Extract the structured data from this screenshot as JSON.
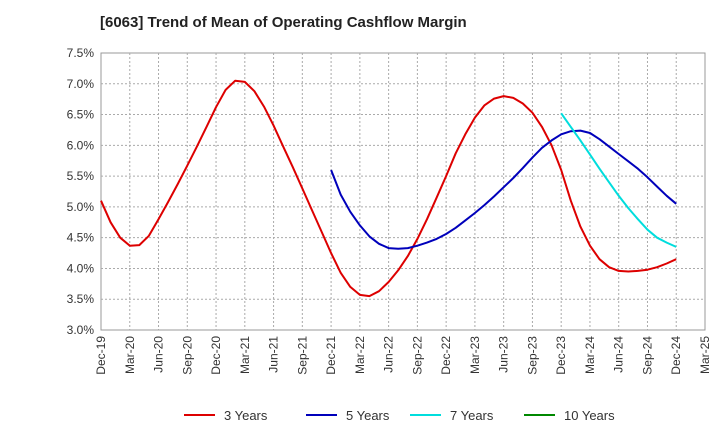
{
  "chart_data": {
    "type": "line",
    "title": "[6063]  Trend of Mean of Operating Cashflow Margin",
    "xlabel": "",
    "ylabel": "",
    "ylim": [
      3.0,
      7.5
    ],
    "grid": true,
    "legend_position": "bottom",
    "x_tick_labels": [
      "Dec-19",
      "Mar-20",
      "Jun-20",
      "Sep-20",
      "Dec-20",
      "Mar-21",
      "Jun-21",
      "Sep-21",
      "Dec-21",
      "Mar-22",
      "Jun-22",
      "Sep-22",
      "Dec-22",
      "Mar-23",
      "Jun-23",
      "Sep-23",
      "Dec-23",
      "Mar-24",
      "Jun-24",
      "Sep-24",
      "Dec-24",
      "Mar-25"
    ],
    "y_tick_labels": [
      "3.0%",
      "3.5%",
      "4.0%",
      "4.5%",
      "5.0%",
      "5.5%",
      "6.0%",
      "6.5%",
      "7.0%",
      "7.5%"
    ],
    "y_ticks": [
      3.0,
      3.5,
      4.0,
      4.5,
      5.0,
      5.5,
      6.0,
      6.5,
      7.0,
      7.5
    ],
    "series": [
      {
        "name": "3 Years",
        "color": "#dd0000",
        "x": [
          "Dec-19",
          "Jan-20",
          "Feb-20",
          "Mar-20",
          "Apr-20",
          "May-20",
          "Jun-20",
          "Jul-20",
          "Aug-20",
          "Sep-20",
          "Oct-20",
          "Nov-20",
          "Dec-20",
          "Jan-21",
          "Feb-21",
          "Mar-21",
          "Apr-21",
          "May-21",
          "Jun-21",
          "Jul-21",
          "Aug-21",
          "Sep-21",
          "Oct-21",
          "Nov-21",
          "Dec-21",
          "Jan-22",
          "Feb-22",
          "Mar-22",
          "Apr-22",
          "May-22",
          "Jun-22",
          "Jul-22",
          "Aug-22",
          "Sep-22",
          "Oct-22",
          "Nov-22",
          "Dec-22",
          "Jan-23",
          "Feb-23",
          "Mar-23",
          "Apr-23",
          "May-23",
          "Jun-23",
          "Jul-23",
          "Aug-23",
          "Sep-23",
          "Oct-23",
          "Nov-23",
          "Dec-23",
          "Jan-24",
          "Feb-24",
          "Mar-24",
          "Apr-24",
          "May-24",
          "Jun-24",
          "Jul-24",
          "Aug-24",
          "Sep-24",
          "Oct-24",
          "Nov-24",
          "Dec-24"
        ],
        "values": [
          5.1,
          4.75,
          4.5,
          4.37,
          4.38,
          4.53,
          4.8,
          5.08,
          5.37,
          5.67,
          5.98,
          6.3,
          6.62,
          6.9,
          7.05,
          7.03,
          6.88,
          6.63,
          6.32,
          5.98,
          5.65,
          5.3,
          4.95,
          4.6,
          4.25,
          3.93,
          3.7,
          3.57,
          3.55,
          3.63,
          3.78,
          3.97,
          4.2,
          4.48,
          4.8,
          5.15,
          5.5,
          5.87,
          6.18,
          6.45,
          6.65,
          6.76,
          6.8,
          6.77,
          6.68,
          6.53,
          6.3,
          6.0,
          5.6,
          5.1,
          4.68,
          4.37,
          4.15,
          4.02,
          3.96,
          3.95,
          3.96,
          3.98,
          4.02,
          4.08,
          4.15
        ]
      },
      {
        "name": "5 Years",
        "color": "#0000bb",
        "x": [
          "Dec-21",
          "Jan-22",
          "Feb-22",
          "Mar-22",
          "Apr-22",
          "May-22",
          "Jun-22",
          "Jul-22",
          "Aug-22",
          "Sep-22",
          "Oct-22",
          "Nov-22",
          "Dec-22",
          "Jan-23",
          "Feb-23",
          "Mar-23",
          "Apr-23",
          "May-23",
          "Jun-23",
          "Jul-23",
          "Aug-23",
          "Sep-23",
          "Oct-23",
          "Nov-23",
          "Dec-23",
          "Jan-24",
          "Feb-24",
          "Mar-24",
          "Apr-24",
          "May-24",
          "Jun-24",
          "Jul-24",
          "Aug-24",
          "Sep-24",
          "Oct-24",
          "Nov-24",
          "Dec-24"
        ],
        "values": [
          5.6,
          5.2,
          4.92,
          4.7,
          4.52,
          4.4,
          4.33,
          4.32,
          4.33,
          4.37,
          4.42,
          4.48,
          4.56,
          4.66,
          4.78,
          4.9,
          5.03,
          5.17,
          5.32,
          5.47,
          5.63,
          5.8,
          5.96,
          6.08,
          6.18,
          6.23,
          6.24,
          6.2,
          6.1,
          5.98,
          5.86,
          5.74,
          5.62,
          5.48,
          5.33,
          5.18,
          5.05
        ]
      },
      {
        "name": "7 Years",
        "color": "#00dddd",
        "x": [
          "Dec-23",
          "Jan-24",
          "Feb-24",
          "Mar-24",
          "Apr-24",
          "May-24",
          "Jun-24",
          "Jul-24",
          "Aug-24",
          "Sep-24",
          "Oct-24",
          "Nov-24",
          "Dec-24"
        ],
        "values": [
          6.52,
          6.3,
          6.08,
          5.85,
          5.62,
          5.4,
          5.18,
          4.98,
          4.8,
          4.63,
          4.5,
          4.42,
          4.35
        ]
      },
      {
        "name": "10 Years",
        "color": "#008800",
        "x": [],
        "values": []
      }
    ]
  }
}
